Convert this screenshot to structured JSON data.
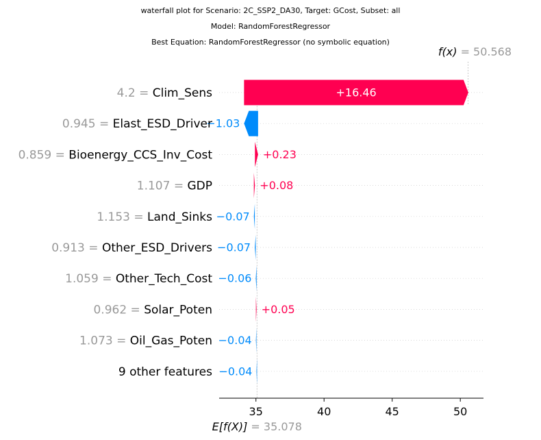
{
  "titles": [
    "waterfall plot for Scenario: 2C_SSP2_DA30, Target: GCost, Subset: all",
    "Model: RandomForestRegressor",
    "Best Equation: RandomForestRegressor (no symbolic equation)"
  ],
  "colors": {
    "positive": "#ff0051",
    "negative": "#008bfb",
    "muted": "#999999",
    "grid": "#cccccc"
  },
  "chart_data": {
    "type": "waterfall",
    "base_value": 35.078,
    "final_value": 50.568,
    "base_label": "E[f(X)]",
    "final_label": "f(x)",
    "base_value_text": "= 35.078",
    "final_value_text": "= 50.568",
    "xlim": [
      32.3,
      51.7
    ],
    "xticks": [
      35,
      40,
      45,
      50
    ],
    "features": [
      {
        "value": "4.2",
        "name": "Clim_Sens",
        "contribution": 16.46,
        "label": "+16.46"
      },
      {
        "value": "0.945",
        "name": "Elast_ESD_Driver",
        "contribution": -1.03,
        "label": "−1.03"
      },
      {
        "value": "0.859",
        "name": "Bioenergy_CCS_Inv_Cost",
        "contribution": 0.23,
        "label": "+0.23"
      },
      {
        "value": "1.107",
        "name": "GDP",
        "contribution": 0.08,
        "label": "+0.08"
      },
      {
        "value": "1.153",
        "name": "Land_Sinks",
        "contribution": -0.07,
        "label": "−0.07"
      },
      {
        "value": "0.913",
        "name": "Other_ESD_Drivers",
        "contribution": -0.07,
        "label": "−0.07"
      },
      {
        "value": "1.059",
        "name": "Other_Tech_Cost",
        "contribution": -0.06,
        "label": "−0.06"
      },
      {
        "value": "0.962",
        "name": "Solar_Poten",
        "contribution": 0.05,
        "label": "+0.05"
      },
      {
        "value": "1.073",
        "name": "Oil_Gas_Poten",
        "contribution": -0.04,
        "label": "−0.04"
      },
      {
        "value": "",
        "name": "9 other features",
        "contribution": -0.04,
        "label": "−0.04"
      }
    ]
  }
}
